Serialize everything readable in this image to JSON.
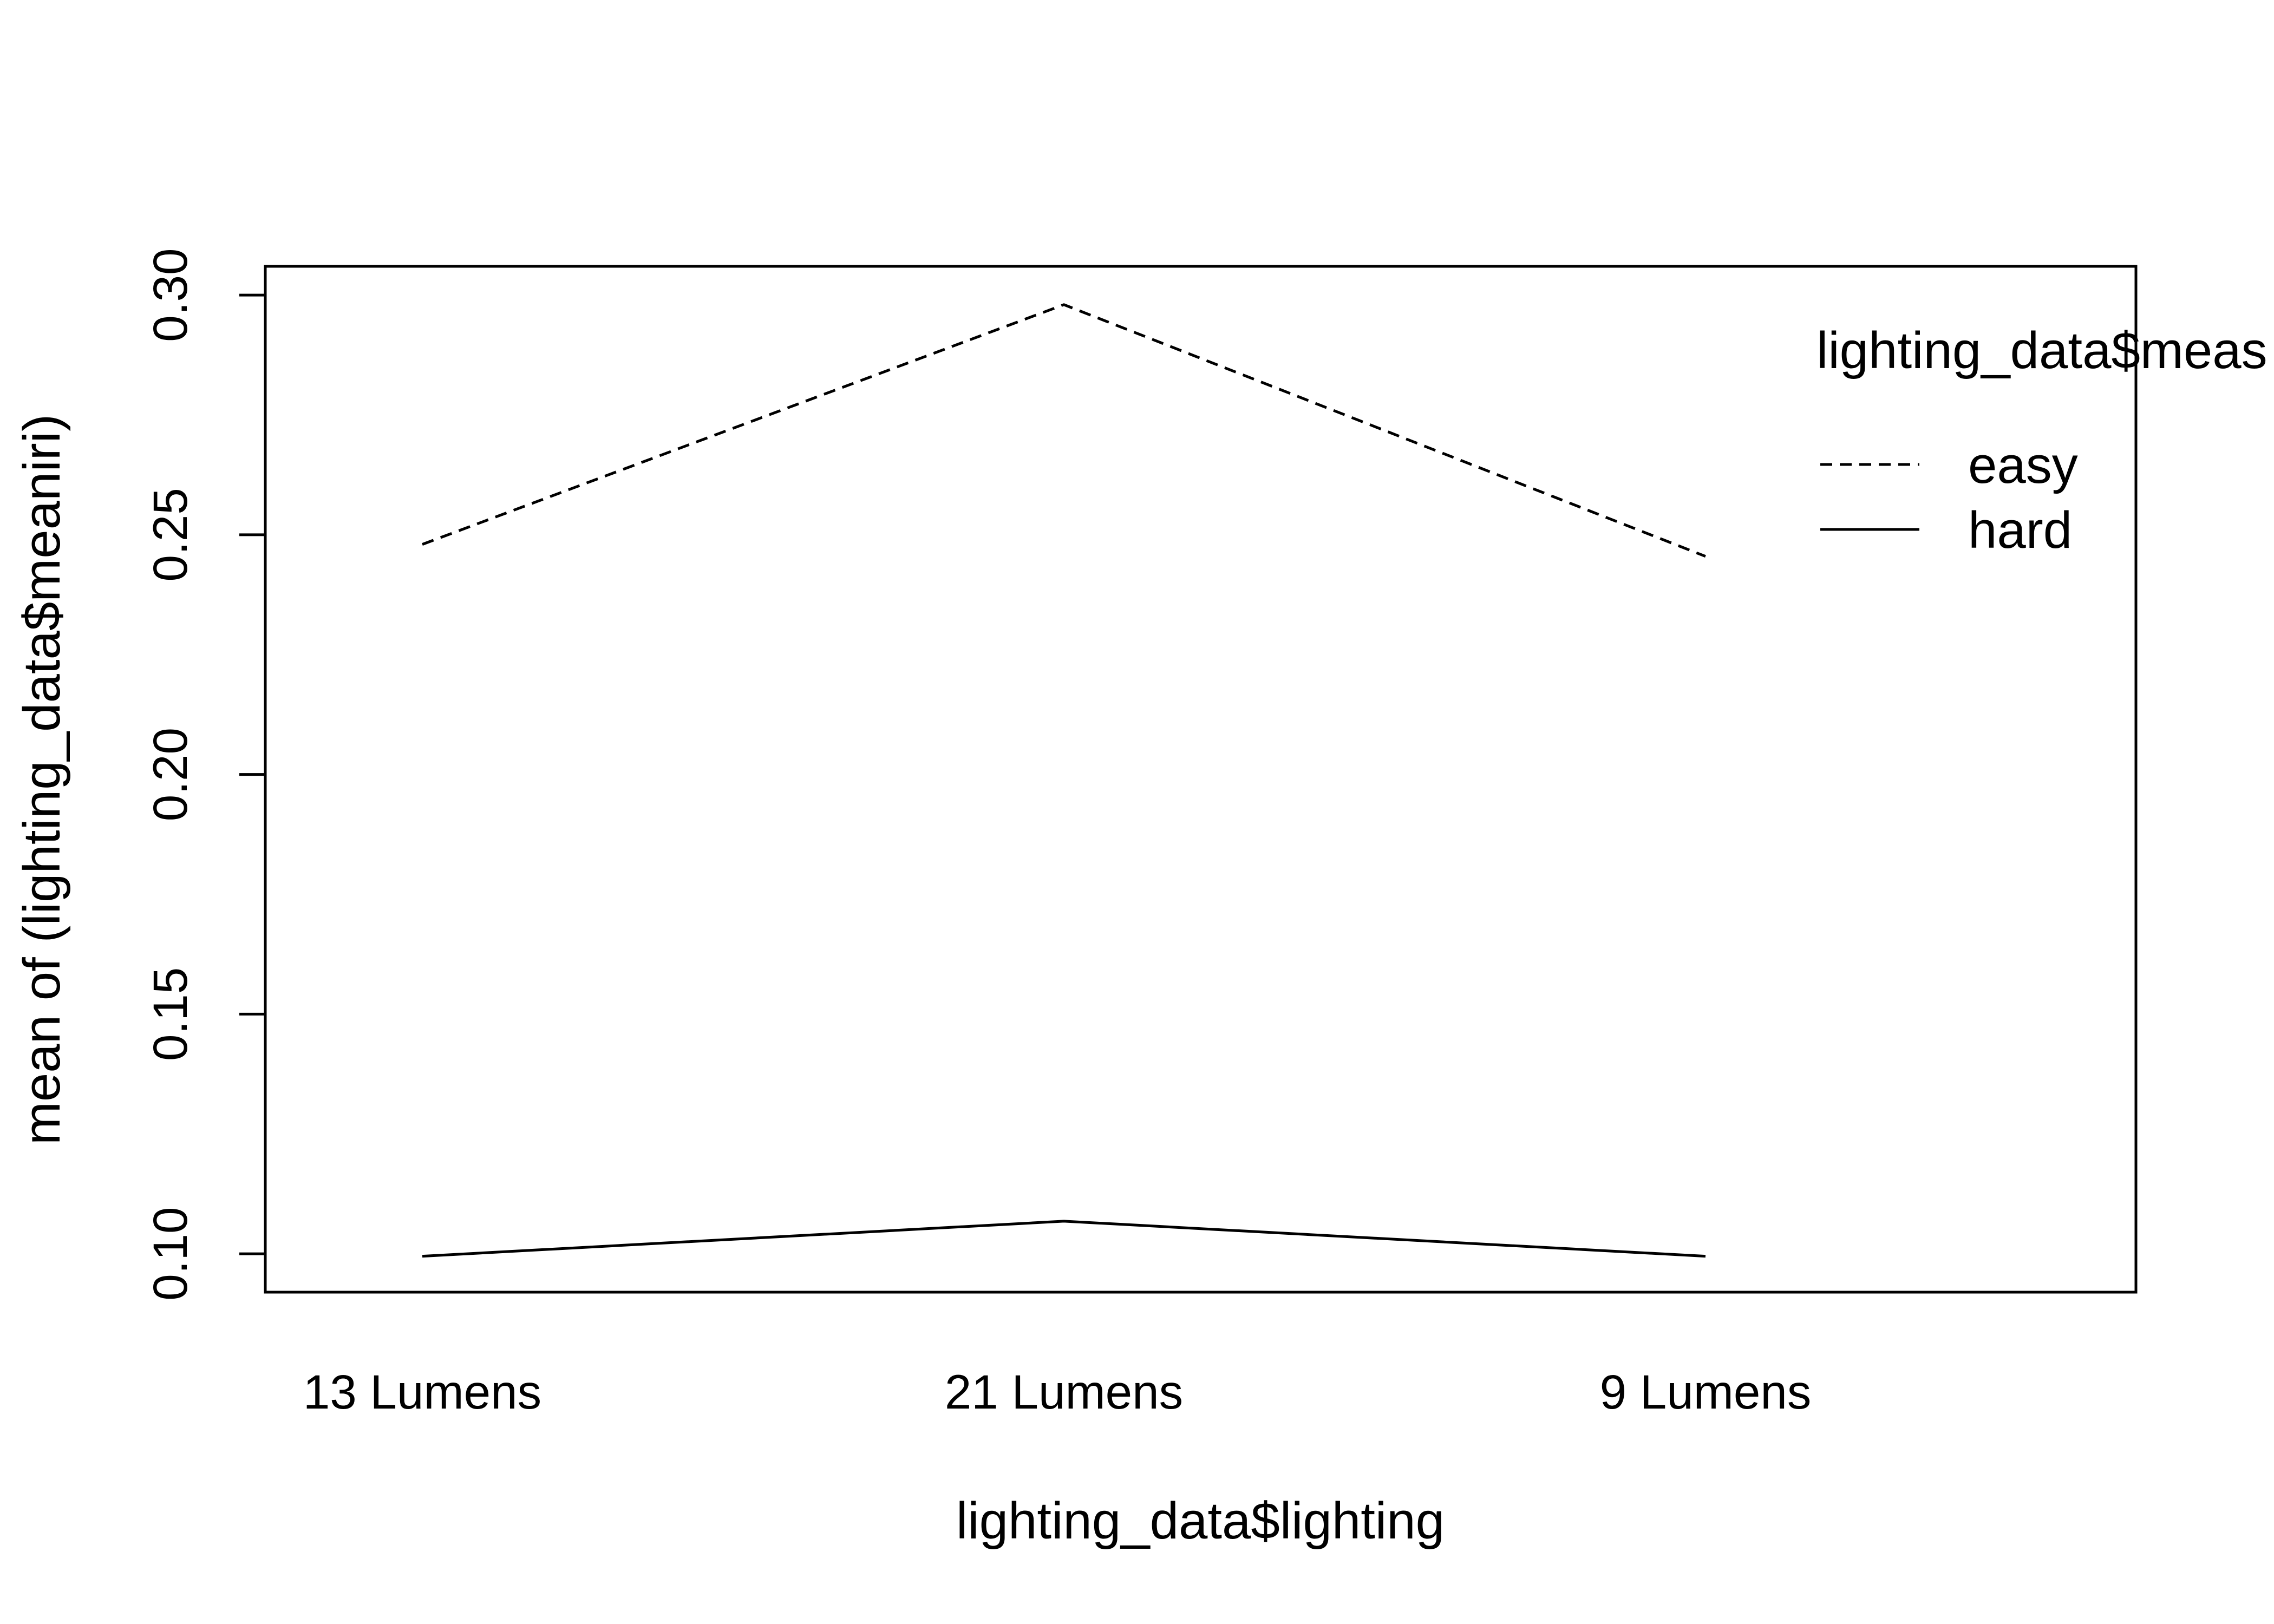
{
  "chart_data": {
    "type": "line",
    "title": "",
    "xlabel": "lighting_data$lighting",
    "ylabel": "mean of  (lighting_data$meaniri)",
    "categories": [
      "13 Lumens",
      "21 Lumens",
      "9 Lumens"
    ],
    "series": [
      {
        "name": "easy",
        "values": [
          0.248,
          0.298,
          0.2455
        ],
        "line_style": "dashed"
      },
      {
        "name": "hard",
        "values": [
          0.0995,
          0.1068,
          0.0995
        ],
        "line_style": "solid"
      }
    ],
    "ylim": [
      0.092,
      0.306
    ],
    "yticks": [
      "0.10",
      "0.15",
      "0.20",
      "0.25",
      "0.30"
    ],
    "legend": {
      "title": "lighting_data$meas",
      "position": "top-right"
    },
    "grid": false,
    "colors": {
      "line": "#000000",
      "background": "#ffffff"
    }
  }
}
